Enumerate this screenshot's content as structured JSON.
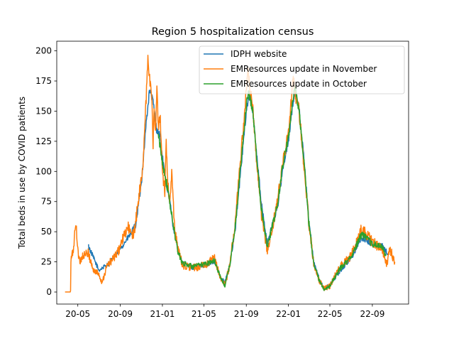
{
  "chart_data": {
    "type": "line",
    "title": "Region 5 hospitalization census",
    "xlabel": "",
    "ylabel": "Total beds in use by COVID patients",
    "x_ticks": [
      "20-05",
      "20-09",
      "21-01",
      "21-05",
      "21-09",
      "22-01",
      "22-05",
      "22-09"
    ],
    "y_ticks": [
      "0",
      "25",
      "50",
      "75",
      "100",
      "125",
      "150",
      "175",
      "200"
    ],
    "xlim": [
      "2020-03-01",
      "2022-12-15"
    ],
    "ylim": [
      -10,
      208
    ],
    "legend_position": "upper right",
    "series": [
      {
        "name": "IDPH website",
        "color": "#1f77b4",
        "points": [
          [
            "2020-06-01",
            38
          ],
          [
            "2020-07-01",
            18
          ],
          [
            "2020-08-01",
            24
          ],
          [
            "2020-09-01",
            36
          ],
          [
            "2020-10-01",
            48
          ],
          [
            "2020-10-15",
            55
          ],
          [
            "2020-11-01",
            90
          ],
          [
            "2020-11-15",
            140
          ],
          [
            "2020-11-25",
            168
          ],
          [
            "2020-12-05",
            158
          ],
          [
            "2020-12-15",
            135
          ],
          [
            "2020-12-25",
            130
          ],
          [
            "2021-01-01",
            112
          ],
          [
            "2021-01-10",
            92
          ],
          [
            "2021-01-20",
            80
          ],
          [
            "2021-02-01",
            55
          ],
          [
            "2021-02-15",
            35
          ],
          [
            "2021-03-01",
            24
          ],
          [
            "2021-04-01",
            20
          ],
          [
            "2021-05-01",
            22
          ],
          [
            "2021-06-01",
            25
          ],
          [
            "2021-06-20",
            12
          ],
          [
            "2021-07-01",
            8
          ],
          [
            "2021-07-15",
            22
          ],
          [
            "2021-08-01",
            55
          ],
          [
            "2021-08-15",
            98
          ],
          [
            "2021-09-01",
            150
          ],
          [
            "2021-09-10",
            165
          ],
          [
            "2021-09-20",
            150
          ],
          [
            "2021-10-01",
            115
          ],
          [
            "2021-10-15",
            72
          ],
          [
            "2021-11-01",
            40
          ],
          [
            "2021-11-15",
            55
          ],
          [
            "2021-12-01",
            72
          ],
          [
            "2021-12-15",
            100
          ],
          [
            "2022-01-01",
            125
          ],
          [
            "2022-01-10",
            148
          ],
          [
            "2022-01-20",
            168
          ],
          [
            "2022-02-01",
            152
          ],
          [
            "2022-02-15",
            110
          ],
          [
            "2022-03-01",
            60
          ],
          [
            "2022-03-15",
            25
          ],
          [
            "2022-04-01",
            10
          ],
          [
            "2022-04-15",
            3
          ],
          [
            "2022-05-01",
            6
          ],
          [
            "2022-06-01",
            18
          ],
          [
            "2022-07-01",
            28
          ],
          [
            "2022-08-01",
            45
          ],
          [
            "2022-09-01",
            40
          ],
          [
            "2022-10-01",
            38
          ],
          [
            "2022-10-15",
            32
          ]
        ]
      },
      {
        "name": "EMResources update in November",
        "color": "#ff7f0e",
        "points": [
          [
            "2020-03-25",
            0
          ],
          [
            "2020-04-10",
            0
          ],
          [
            "2020-04-11",
            26
          ],
          [
            "2020-04-18",
            35
          ],
          [
            "2020-04-25",
            57
          ],
          [
            "2020-05-05",
            25
          ],
          [
            "2020-05-15",
            30
          ],
          [
            "2020-06-01",
            32
          ],
          [
            "2020-06-15",
            18
          ],
          [
            "2020-07-01",
            15
          ],
          [
            "2020-07-10",
            8
          ],
          [
            "2020-07-25",
            22
          ],
          [
            "2020-08-10",
            27
          ],
          [
            "2020-08-25",
            33
          ],
          [
            "2020-09-10",
            45
          ],
          [
            "2020-09-25",
            54
          ],
          [
            "2020-10-05",
            45
          ],
          [
            "2020-10-15",
            56
          ],
          [
            "2020-10-25",
            80
          ],
          [
            "2020-11-05",
            100
          ],
          [
            "2020-11-10",
            133
          ],
          [
            "2020-11-15",
            160
          ],
          [
            "2020-11-20",
            196
          ],
          [
            "2020-11-25",
            176
          ],
          [
            "2020-12-01",
            165
          ],
          [
            "2020-12-05",
            120
          ],
          [
            "2020-12-08",
            155
          ],
          [
            "2020-12-12",
            132
          ],
          [
            "2020-12-16",
            168
          ],
          [
            "2020-12-20",
            137
          ],
          [
            "2020-12-25",
            148
          ],
          [
            "2021-01-01",
            100
          ],
          [
            "2021-01-08",
            84
          ],
          [
            "2021-01-12",
            130
          ],
          [
            "2021-01-15",
            95
          ],
          [
            "2021-01-22",
            72
          ],
          [
            "2021-01-28",
            98
          ],
          [
            "2021-02-05",
            55
          ],
          [
            "2021-02-15",
            35
          ],
          [
            "2021-03-01",
            22
          ],
          [
            "2021-04-01",
            20
          ],
          [
            "2021-05-01",
            22
          ],
          [
            "2021-06-01",
            28
          ],
          [
            "2021-06-20",
            10
          ],
          [
            "2021-07-01",
            6
          ],
          [
            "2021-07-15",
            22
          ],
          [
            "2021-08-01",
            60
          ],
          [
            "2021-08-15",
            110
          ],
          [
            "2021-09-01",
            165
          ],
          [
            "2021-09-05",
            184
          ],
          [
            "2021-09-12",
            168
          ],
          [
            "2021-09-20",
            150
          ],
          [
            "2021-10-01",
            108
          ],
          [
            "2021-10-15",
            62
          ],
          [
            "2021-11-01",
            34
          ],
          [
            "2021-11-15",
            52
          ],
          [
            "2021-12-01",
            75
          ],
          [
            "2021-12-15",
            108
          ],
          [
            "2022-01-01",
            130
          ],
          [
            "2022-01-08",
            155
          ],
          [
            "2022-01-15",
            180
          ],
          [
            "2022-01-20",
            165
          ],
          [
            "2022-02-01",
            150
          ],
          [
            "2022-02-15",
            105
          ],
          [
            "2022-03-01",
            58
          ],
          [
            "2022-03-15",
            24
          ],
          [
            "2022-04-01",
            9
          ],
          [
            "2022-04-15",
            3
          ],
          [
            "2022-05-01",
            5
          ],
          [
            "2022-06-01",
            22
          ],
          [
            "2022-07-01",
            30
          ],
          [
            "2022-08-01",
            52
          ],
          [
            "2022-08-15",
            48
          ],
          [
            "2022-09-01",
            42
          ],
          [
            "2022-10-01",
            35
          ],
          [
            "2022-10-10",
            26
          ],
          [
            "2022-10-15",
            22
          ],
          [
            "2022-10-20",
            37
          ],
          [
            "2022-11-05",
            25
          ]
        ]
      },
      {
        "name": "EMResources update in October",
        "color": "#2ca02c",
        "points": [
          [
            "2020-12-20",
            130
          ],
          [
            "2021-01-01",
            108
          ],
          [
            "2021-01-10",
            95
          ],
          [
            "2021-01-20",
            78
          ],
          [
            "2021-02-01",
            56
          ],
          [
            "2021-02-15",
            33
          ],
          [
            "2021-03-01",
            24
          ],
          [
            "2021-04-01",
            21
          ],
          [
            "2021-05-01",
            23
          ],
          [
            "2021-06-01",
            26
          ],
          [
            "2021-06-20",
            11
          ],
          [
            "2021-07-01",
            5
          ],
          [
            "2021-07-15",
            22
          ],
          [
            "2021-08-01",
            57
          ],
          [
            "2021-08-15",
            102
          ],
          [
            "2021-09-01",
            155
          ],
          [
            "2021-09-08",
            165
          ],
          [
            "2021-09-20",
            150
          ],
          [
            "2021-10-01",
            112
          ],
          [
            "2021-10-15",
            68
          ],
          [
            "2021-11-01",
            38
          ],
          [
            "2021-11-15",
            54
          ],
          [
            "2021-12-01",
            73
          ],
          [
            "2021-12-15",
            104
          ],
          [
            "2022-01-01",
            128
          ],
          [
            "2022-01-10",
            152
          ],
          [
            "2022-01-20",
            170
          ],
          [
            "2022-02-01",
            150
          ],
          [
            "2022-02-15",
            108
          ],
          [
            "2022-03-01",
            58
          ],
          [
            "2022-03-15",
            24
          ],
          [
            "2022-04-01",
            9
          ],
          [
            "2022-04-15",
            2
          ],
          [
            "2022-05-01",
            5
          ],
          [
            "2022-06-01",
            20
          ],
          [
            "2022-07-01",
            29
          ],
          [
            "2022-08-01",
            48
          ],
          [
            "2022-09-01",
            40
          ],
          [
            "2022-10-01",
            37
          ],
          [
            "2022-10-10",
            30
          ]
        ]
      }
    ]
  }
}
